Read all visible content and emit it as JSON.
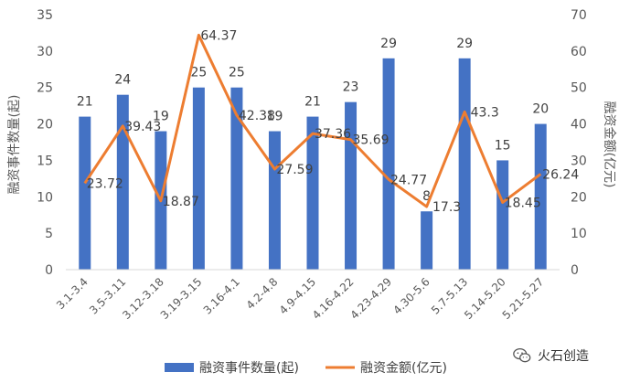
{
  "chart_data": {
    "type": "bar",
    "categories": [
      "3.1-3.4",
      "3.5-3.11",
      "3.12-3.18",
      "3.19-3.15",
      "3.16-4.1",
      "4.2-4.8",
      "4.9-4.15",
      "4.16-4.22",
      "4.23-4.29",
      "4.30-5.6",
      "5.7-5.13",
      "5.14-5.20",
      "5.21-5.27"
    ],
    "series": [
      {
        "name": "融资事件数量(起)",
        "type": "bar",
        "axis": "left",
        "color": "#4472C4",
        "values": [
          21,
          24,
          19,
          25,
          25,
          19,
          21,
          23,
          29,
          8,
          29,
          15,
          20
        ]
      },
      {
        "name": "融资金额(亿元)",
        "type": "line",
        "axis": "right",
        "color": "#ED7D31",
        "values": [
          23.72,
          39.43,
          18.87,
          64.37,
          42.38,
          27.59,
          37.36,
          35.69,
          24.77,
          17.3,
          43.3,
          18.45,
          26.24
        ]
      }
    ],
    "ylabel": "融资事件数量(起)",
    "ylabel_right": "融资金额(亿元)",
    "ylim": [
      0,
      35
    ],
    "ylim_right": [
      0,
      70
    ],
    "yticks": [
      0,
      5,
      10,
      15,
      20,
      25,
      30,
      35
    ],
    "yticks_right": [
      0,
      10,
      20,
      30,
      40,
      50,
      60,
      70
    ],
    "grid": false,
    "legend": "bottom"
  },
  "watermark": {
    "text": "火石创造",
    "icon": "wechat-icon"
  }
}
